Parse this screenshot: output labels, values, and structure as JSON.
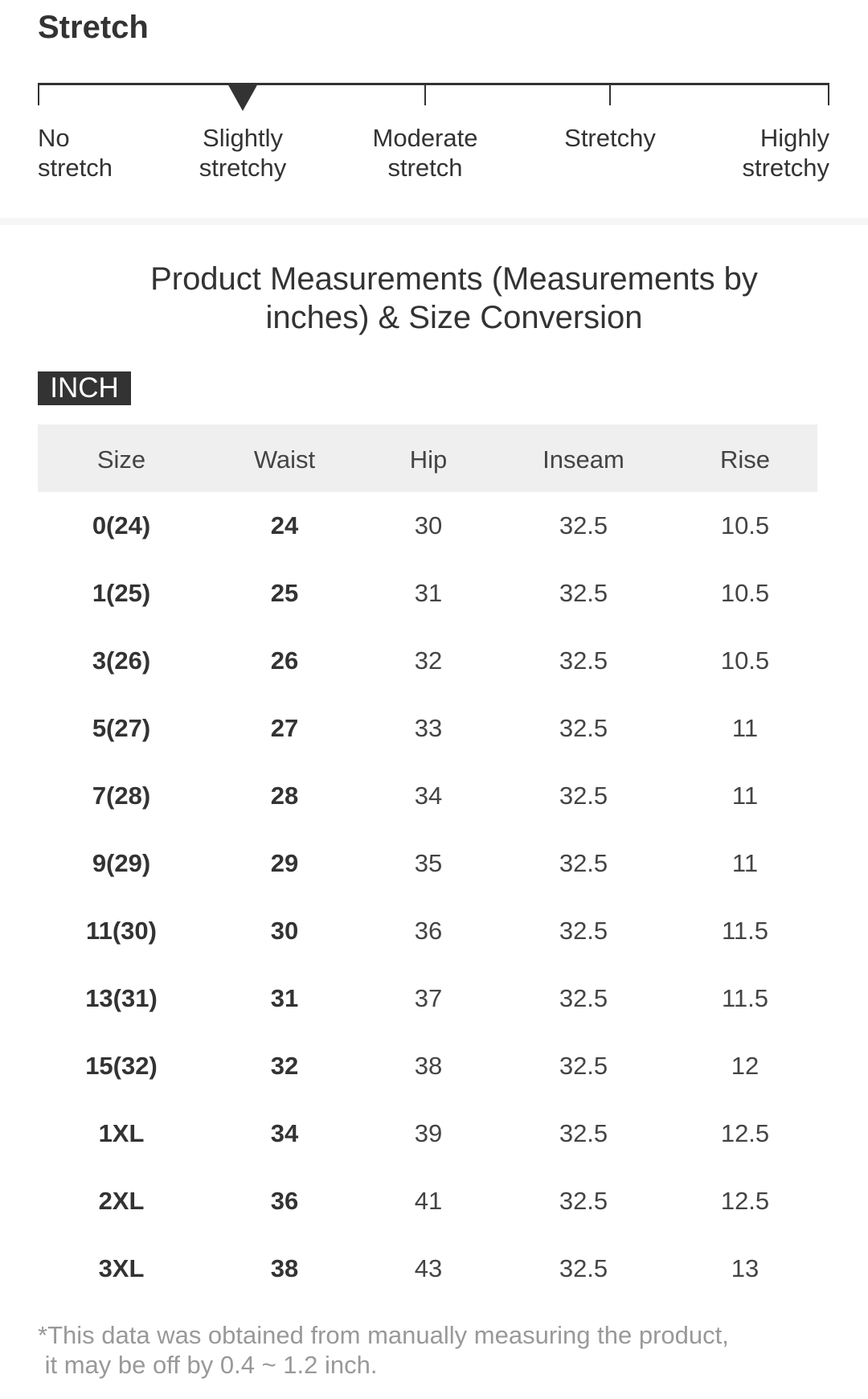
{
  "stretch": {
    "title": "Stretch",
    "levels": [
      "No\nstretch",
      "Slightly\nstretchy",
      "Moderate\nstretch",
      "Stretchy",
      "Highly\nstretchy"
    ],
    "selected_level": "Slightly\nstretchy"
  },
  "table_title": "Product Measurements (Measurements by inches) & Size Conversion",
  "unit_badge": "INCH",
  "table": {
    "headers": [
      "Size",
      "Waist",
      "Hip",
      "Inseam",
      "Rise"
    ],
    "rows": [
      [
        "0(24)",
        "24",
        "30",
        "32.5",
        "10.5"
      ],
      [
        "1(25)",
        "25",
        "31",
        "32.5",
        "10.5"
      ],
      [
        "3(26)",
        "26",
        "32",
        "32.5",
        "10.5"
      ],
      [
        "5(27)",
        "27",
        "33",
        "32.5",
        "11"
      ],
      [
        "7(28)",
        "28",
        "34",
        "32.5",
        "11"
      ],
      [
        "9(29)",
        "29",
        "35",
        "32.5",
        "11"
      ],
      [
        "11(30)",
        "30",
        "36",
        "32.5",
        "11.5"
      ],
      [
        "13(31)",
        "31",
        "37",
        "32.5",
        "11.5"
      ],
      [
        "15(32)",
        "32",
        "38",
        "32.5",
        "12"
      ],
      [
        "1XL",
        "34",
        "39",
        "32.5",
        "12.5"
      ],
      [
        "2XL",
        "36",
        "41",
        "32.5",
        "12.5"
      ],
      [
        "3XL",
        "38",
        "43",
        "32.5",
        "13"
      ]
    ]
  },
  "footnote": "*This data was obtained from manually measuring the product,\n it may be off by 0.4 ~ 1.2 inch."
}
